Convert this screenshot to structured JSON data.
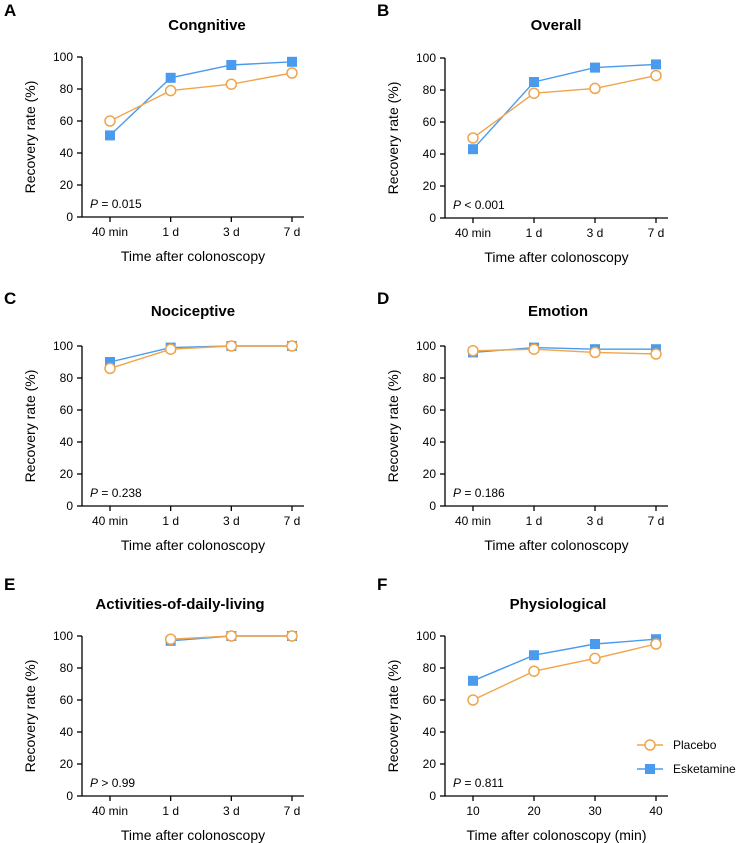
{
  "colors": {
    "placebo": "#F0A54A",
    "esketamine": "#4A9BEE",
    "axis": "#000000"
  },
  "legend": [
    {
      "name": "Placebo",
      "marker": "circle-open"
    },
    {
      "name": "Esketamine",
      "marker": "square-filled"
    }
  ],
  "chart_data": [
    {
      "letter": "A",
      "type": "line",
      "title": "Congnitive",
      "categories": [
        "40 min",
        "1 d",
        "3 d",
        "7 d"
      ],
      "xlabel": "Time after colonoscopy",
      "ylabel": "Recovery rate (%)",
      "ylim": [
        0,
        100
      ],
      "yticks": [
        0,
        20,
        40,
        60,
        80,
        100
      ],
      "p_prefix": "P",
      "p_rest": " = 0.015",
      "series": [
        {
          "name": "Placebo",
          "values": [
            60,
            79,
            83,
            90
          ]
        },
        {
          "name": "Esketamine",
          "values": [
            51,
            87,
            95,
            97
          ]
        }
      ]
    },
    {
      "letter": "B",
      "type": "line",
      "title": "Overall",
      "categories": [
        "40 min",
        "1 d",
        "3 d",
        "7 d"
      ],
      "xlabel": "Time after colonoscopy",
      "ylabel": "Recovery rate (%)",
      "ylim": [
        0,
        100
      ],
      "yticks": [
        0,
        20,
        40,
        60,
        80,
        100
      ],
      "p_prefix": "P",
      "p_rest": " < 0.001",
      "series": [
        {
          "name": "Placebo",
          "values": [
            50,
            78,
            81,
            89
          ]
        },
        {
          "name": "Esketamine",
          "values": [
            43,
            85,
            94,
            96
          ]
        }
      ]
    },
    {
      "letter": "C",
      "type": "line",
      "title": "Nociceptive",
      "categories": [
        "40 min",
        "1 d",
        "3 d",
        "7 d"
      ],
      "xlabel": "Time after colonoscopy",
      "ylabel": "Recovery rate (%)",
      "ylim": [
        0,
        100
      ],
      "yticks": [
        0,
        20,
        40,
        60,
        80,
        100
      ],
      "p_prefix": "P",
      "p_rest": " = 0.238",
      "series": [
        {
          "name": "Placebo",
          "values": [
            86,
            98,
            100,
            100
          ]
        },
        {
          "name": "Esketamine",
          "values": [
            90,
            99,
            100,
            100
          ]
        }
      ]
    },
    {
      "letter": "D",
      "type": "line",
      "title": "Emotion",
      "categories": [
        "40 min",
        "1 d",
        "3 d",
        "7 d"
      ],
      "xlabel": "Time after colonoscopy",
      "ylabel": "Recovery rate (%)",
      "ylim": [
        0,
        100
      ],
      "yticks": [
        0,
        20,
        40,
        60,
        80,
        100
      ],
      "p_prefix": "P",
      "p_rest": " = 0.186",
      "series": [
        {
          "name": "Placebo",
          "values": [
            97,
            98,
            96,
            95
          ]
        },
        {
          "name": "Esketamine",
          "values": [
            96,
            99,
            98,
            98
          ]
        }
      ]
    },
    {
      "letter": "E",
      "type": "line",
      "title": "Activities-of-daily-living",
      "categories": [
        "40 min",
        "1 d",
        "3 d",
        "7 d"
      ],
      "xlabel": "Time after colonoscopy",
      "ylabel": "Recovery rate (%)",
      "ylim": [
        0,
        100
      ],
      "yticks": [
        0,
        20,
        40,
        60,
        80,
        100
      ],
      "p_prefix": "P",
      "p_rest": " > 0.99",
      "series": [
        {
          "name": "Placebo",
          "values": [
            null,
            98,
            100,
            100
          ]
        },
        {
          "name": "Esketamine",
          "values": [
            null,
            97,
            100,
            100
          ]
        }
      ]
    },
    {
      "letter": "F",
      "type": "line",
      "title": "Physiological",
      "categories": [
        "10",
        "20",
        "30",
        "40"
      ],
      "xlabel": "Time after colonoscopy (min)",
      "ylabel": "Recovery rate (%)",
      "ylim": [
        0,
        100
      ],
      "yticks": [
        0,
        20,
        40,
        60,
        80,
        100
      ],
      "p_prefix": "P",
      "p_rest": " = 0.811",
      "series": [
        {
          "name": "Placebo",
          "values": [
            60,
            78,
            86,
            95
          ]
        },
        {
          "name": "Esketamine",
          "values": [
            72,
            88,
            95,
            98
          ]
        }
      ]
    }
  ]
}
